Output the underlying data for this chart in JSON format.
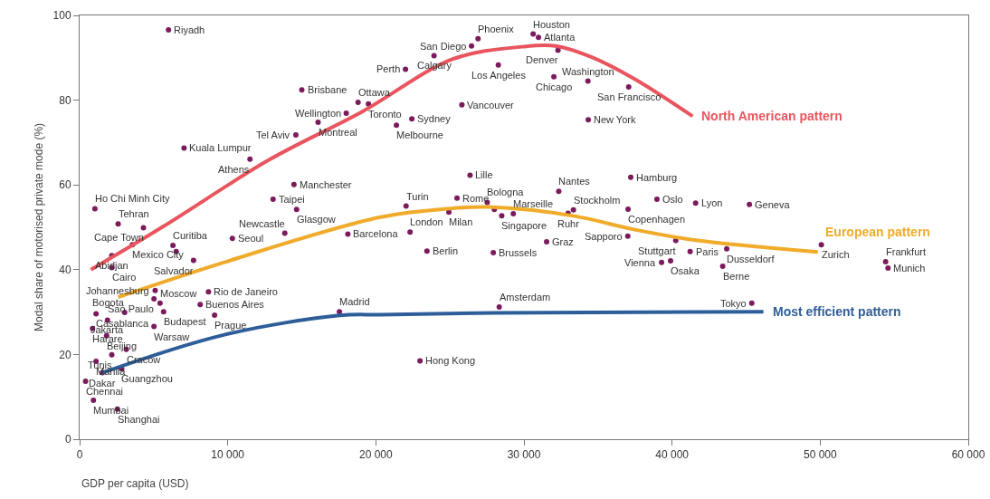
{
  "chart_data": {
    "type": "scatter",
    "xlabel": "GDP per capita (USD)",
    "ylabel": "Modal share of motorised private mode (%)",
    "xlim": [
      0,
      60000
    ],
    "ylim": [
      0,
      100
    ],
    "xticks": [
      0,
      {
        "value": 10000,
        "label": "10 000"
      },
      {
        "value": 20000,
        "label": "20 000"
      },
      {
        "value": 30000,
        "label": "30 000"
      },
      {
        "value": 40000,
        "label": "40 000"
      },
      {
        "value": 50000,
        "label": "50 000"
      },
      {
        "value": 60000,
        "label": "60 000"
      }
    ],
    "yticks": [
      0,
      20,
      40,
      60,
      80,
      100
    ],
    "marker": "circle",
    "series": [
      {
        "color": "#7b1b5e",
        "x": [
          6000,
          15000,
          18800,
          19500,
          18000,
          16100,
          14600,
          7050,
          11500,
          14470,
          13060,
          14650,
          1030,
          2600,
          26900,
          26460,
          30620,
          30980,
          32300,
          23930,
          22000,
          28270,
          32020,
          34320,
          37070,
          25810,
          22430,
          21390,
          34340,
          26360,
          25480,
          22040,
          24930,
          27520,
          28500,
          29280,
          33340,
          32980,
          32350,
          37210,
          38980,
          37030,
          41590,
          37010,
          40250,
          39290,
          39900,
          41220,
          18110,
          22310,
          23450,
          27930,
          31530,
          28330,
          22980,
          17540,
          45220,
          50080,
          43690,
          43420,
          54420,
          54580,
          45380,
          4310,
          3560,
          6300,
          2170,
          2170,
          7690,
          10310,
          13850,
          5100,
          5020,
          5430,
          1110,
          3040,
          5670,
          8700,
          8140,
          9110,
          1880,
          870,
          5020,
          1820,
          3150,
          2170,
          1110,
          1540,
          2840,
          400,
          930,
          2550,
          6520,
          28000
        ],
        "values": [
          96.6,
          82.4,
          79.5,
          79.1,
          76.9,
          74.8,
          71.8,
          68.7,
          66.1,
          60.1,
          56.6,
          54.2,
          54.4,
          50.8,
          94.5,
          92.8,
          95.6,
          94.8,
          91.8,
          90.5,
          87.3,
          88.3,
          85.5,
          84.5,
          83.1,
          78.9,
          75.6,
          74.1,
          75.4,
          62.3,
          56.9,
          55.0,
          53.6,
          55.9,
          52.7,
          53.2,
          54.1,
          53.3,
          58.5,
          61.8,
          56.6,
          54.3,
          55.7,
          47.9,
          46.9,
          41.7,
          42.1,
          44.3,
          48.4,
          48.9,
          44.4,
          44.0,
          46.6,
          31.2,
          18.5,
          30.1,
          55.4,
          45.9,
          44.9,
          40.8,
          41.9,
          40.4,
          32.1,
          49.9,
          45.9,
          45.7,
          43.3,
          40.5,
          42.2,
          47.4,
          48.6,
          35.1,
          33.1,
          32.1,
          29.6,
          29.9,
          30.1,
          34.8,
          31.8,
          29.3,
          28.1,
          26.1,
          26.6,
          24.4,
          21.2,
          19.9,
          18.4,
          15.7,
          16.6,
          13.7,
          9.2,
          7.1,
          44.3,
          54.2
        ]
      },
      {
        "type": "line",
        "marker": "none",
        "name": "North American pattern",
        "color": "#e8555f",
        "x": [
          760,
          5650,
          12780,
          19090,
          25200,
          29880,
          32120,
          34540,
          37420,
          41390
        ],
        "values": [
          40.0,
          50.2,
          65.9,
          77.3,
          89.7,
          92.6,
          92.8,
          90.2,
          85.1,
          76.2
        ]
      },
      {
        "type": "line",
        "marker": "none",
        "name": "European pattern",
        "color": "#f0ab2a",
        "x": [
          2600,
          9720,
          20310,
          25200,
          27640,
          33340,
          37420,
          41490,
          49840
        ],
        "values": [
          33.5,
          41.7,
          52.4,
          54.5,
          54.8,
          52.7,
          49.5,
          47.0,
          44.2
        ]
      },
      {
        "type": "line",
        "marker": "none",
        "name": "Most efficient pattern",
        "color": "#2e5e9a",
        "x": [
          1540,
          9720,
          17540,
          20310,
          28000,
          46170
        ],
        "values": [
          15.7,
          24.6,
          29.2,
          29.4,
          29.8,
          30.1
        ]
      }
    ],
    "annotations": [
      {
        "text": "Riyadh",
        "x": 6000,
        "y": 96.6
      },
      {
        "text": "Brisbane",
        "x": 15000,
        "y": 82.4
      },
      {
        "text": "Ottawa",
        "x": 18800,
        "y": 79.5
      },
      {
        "text": "Toronto",
        "x": 19500,
        "y": 79.1
      },
      {
        "text": "Wellington",
        "x": 18000,
        "y": 76.9
      },
      {
        "text": "Montreal",
        "x": 16100,
        "y": 74.8
      },
      {
        "text": "Tel Aviv",
        "x": 14600,
        "y": 71.8
      },
      {
        "text": "Kuala Lumpur",
        "x": 7050,
        "y": 68.7
      },
      {
        "text": "Athens",
        "x": 11500,
        "y": 66.1
      },
      {
        "text": "Manchester",
        "x": 14470,
        "y": 60.1
      },
      {
        "text": "Taipei",
        "x": 13060,
        "y": 56.6
      },
      {
        "text": "Glasgow",
        "x": 14650,
        "y": 54.2
      },
      {
        "text": "Ho Chi Minh City",
        "x": 1030,
        "y": 54.4
      },
      {
        "text": "Tehran",
        "x": 2600,
        "y": 50.8
      },
      {
        "text": "Phoenix",
        "x": 26900,
        "y": 94.5
      },
      {
        "text": "San Diego",
        "x": 26460,
        "y": 92.8
      },
      {
        "text": "Houston",
        "x": 30620,
        "y": 95.6
      },
      {
        "text": "Atlanta",
        "x": 30980,
        "y": 94.8
      },
      {
        "text": "Denver",
        "x": 32300,
        "y": 91.8
      },
      {
        "text": "Calgary",
        "x": 23930,
        "y": 90.5
      },
      {
        "text": "Perth",
        "x": 22000,
        "y": 87.3
      },
      {
        "text": "Los Angeles",
        "x": 28270,
        "y": 88.3
      },
      {
        "text": "Chicago",
        "x": 32020,
        "y": 85.5
      },
      {
        "text": "Washington",
        "x": 34320,
        "y": 84.5
      },
      {
        "text": "San Francisco",
        "x": 37070,
        "y": 83.1
      },
      {
        "text": "Vancouver",
        "x": 25810,
        "y": 78.9
      },
      {
        "text": "Sydney",
        "x": 22430,
        "y": 75.6
      },
      {
        "text": "Melbourne",
        "x": 21390,
        "y": 74.1
      },
      {
        "text": "New York",
        "x": 34340,
        "y": 75.4
      },
      {
        "text": "Lille",
        "x": 26360,
        "y": 62.3
      },
      {
        "text": "Rome",
        "x": 25480,
        "y": 56.9
      },
      {
        "text": "Turin",
        "x": 22040,
        "y": 55.0
      },
      {
        "text": "Milan",
        "x": 24930,
        "y": 53.6
      },
      {
        "text": "Bologna",
        "x": 27520,
        "y": 55.9
      },
      {
        "text": "Singapore",
        "x": 28500,
        "y": 52.7
      },
      {
        "text": "Marseille",
        "x": 29280,
        "y": 53.2
      },
      {
        "text": "Stockholm",
        "x": 33340,
        "y": 54.1
      },
      {
        "text": "Ruhr",
        "x": 32980,
        "y": 53.3
      },
      {
        "text": "Nantes",
        "x": 32350,
        "y": 58.5
      },
      {
        "text": "Hamburg",
        "x": 37210,
        "y": 61.8
      },
      {
        "text": "Oslo",
        "x": 38980,
        "y": 56.6
      },
      {
        "text": "Copenhagen",
        "x": 37030,
        "y": 54.3
      },
      {
        "text": "Lyon",
        "x": 41590,
        "y": 55.7
      },
      {
        "text": "Sapporo",
        "x": 37010,
        "y": 47.9
      },
      {
        "text": "Stuttgart",
        "x": 40250,
        "y": 46.9
      },
      {
        "text": "Vienna",
        "x": 39290,
        "y": 41.7
      },
      {
        "text": "Osaka",
        "x": 39900,
        "y": 42.1
      },
      {
        "text": "Paris",
        "x": 41220,
        "y": 44.3
      },
      {
        "text": "Barcelona",
        "x": 18110,
        "y": 48.4
      },
      {
        "text": "London",
        "x": 22310,
        "y": 48.9
      },
      {
        "text": "Berlin",
        "x": 23450,
        "y": 44.4
      },
      {
        "text": "Brussels",
        "x": 27930,
        "y": 44.0
      },
      {
        "text": "Graz",
        "x": 31530,
        "y": 46.6
      },
      {
        "text": "Amsterdam",
        "x": 28330,
        "y": 31.2
      },
      {
        "text": "Hong Kong",
        "x": 22980,
        "y": 18.5
      },
      {
        "text": "Madrid",
        "x": 17540,
        "y": 30.1
      },
      {
        "text": "Geneva",
        "x": 45220,
        "y": 55.4
      },
      {
        "text": "Zurich",
        "x": 50080,
        "y": 45.9
      },
      {
        "text": "Dusseldorf",
        "x": 43690,
        "y": 44.9
      },
      {
        "text": "Berne",
        "x": 43420,
        "y": 40.8
      },
      {
        "text": "Frankfurt",
        "x": 54420,
        "y": 41.9
      },
      {
        "text": "Munich",
        "x": 54580,
        "y": 40.4
      },
      {
        "text": "Tokyo",
        "x": 45380,
        "y": 32.1
      },
      {
        "text": "Cape Town",
        "x": 4310,
        "y": 49.9
      },
      {
        "text": "Mexico City",
        "x": 3560,
        "y": 45.9
      },
      {
        "text": "Curitiba",
        "x": 6300,
        "y": 45.7
      },
      {
        "text": "Abidjan",
        "x": 2170,
        "y": 43.3
      },
      {
        "text": "Cairo",
        "x": 2170,
        "y": 40.5
      },
      {
        "text": "Salvador",
        "x": 7690,
        "y": 42.2
      },
      {
        "text": "Seoul",
        "x": 10310,
        "y": 47.4
      },
      {
        "text": "Newcastle",
        "x": 13850,
        "y": 48.6
      },
      {
        "text": "Johannesburg",
        "x": 5100,
        "y": 35.1
      },
      {
        "text": "Sao Paulo",
        "x": 5020,
        "y": 33.1
      },
      {
        "text": "Moscow",
        "x": 5430,
        "y": 32.1
      },
      {
        "text": "Casablanca",
        "x": 1110,
        "y": 29.6
      },
      {
        "text": "Bogota",
        "x": 3040,
        "y": 29.9
      },
      {
        "text": "Budapest",
        "x": 5670,
        "y": 30.1
      },
      {
        "text": "Rio de Janeiro",
        "x": 8700,
        "y": 34.8
      },
      {
        "text": "Buenos Aires",
        "x": 8140,
        "y": 31.8
      },
      {
        "text": "Prague",
        "x": 9110,
        "y": 29.3
      },
      {
        "text": "Jakarta",
        "x": 1880,
        "y": 28.1
      },
      {
        "text": "Harare",
        "x": 870,
        "y": 26.1
      },
      {
        "text": "Warsaw",
        "x": 5020,
        "y": 26.6
      },
      {
        "text": "Beijing",
        "x": 1820,
        "y": 24.4
      },
      {
        "text": "Cracow",
        "x": 3150,
        "y": 21.2
      },
      {
        "text": "Tunis",
        "x": 2170,
        "y": 19.9
      },
      {
        "text": "Manila",
        "x": 1110,
        "y": 18.4
      },
      {
        "text": "Dakar",
        "x": 1540,
        "y": 15.7
      },
      {
        "text": "Guangzhou",
        "x": 2840,
        "y": 16.6
      },
      {
        "text": "Chennai",
        "x": 400,
        "y": 13.7
      },
      {
        "text": "Mumbai",
        "x": 930,
        "y": 9.2
      },
      {
        "text": "Shanghai",
        "x": 2550,
        "y": 7.1
      }
    ]
  }
}
